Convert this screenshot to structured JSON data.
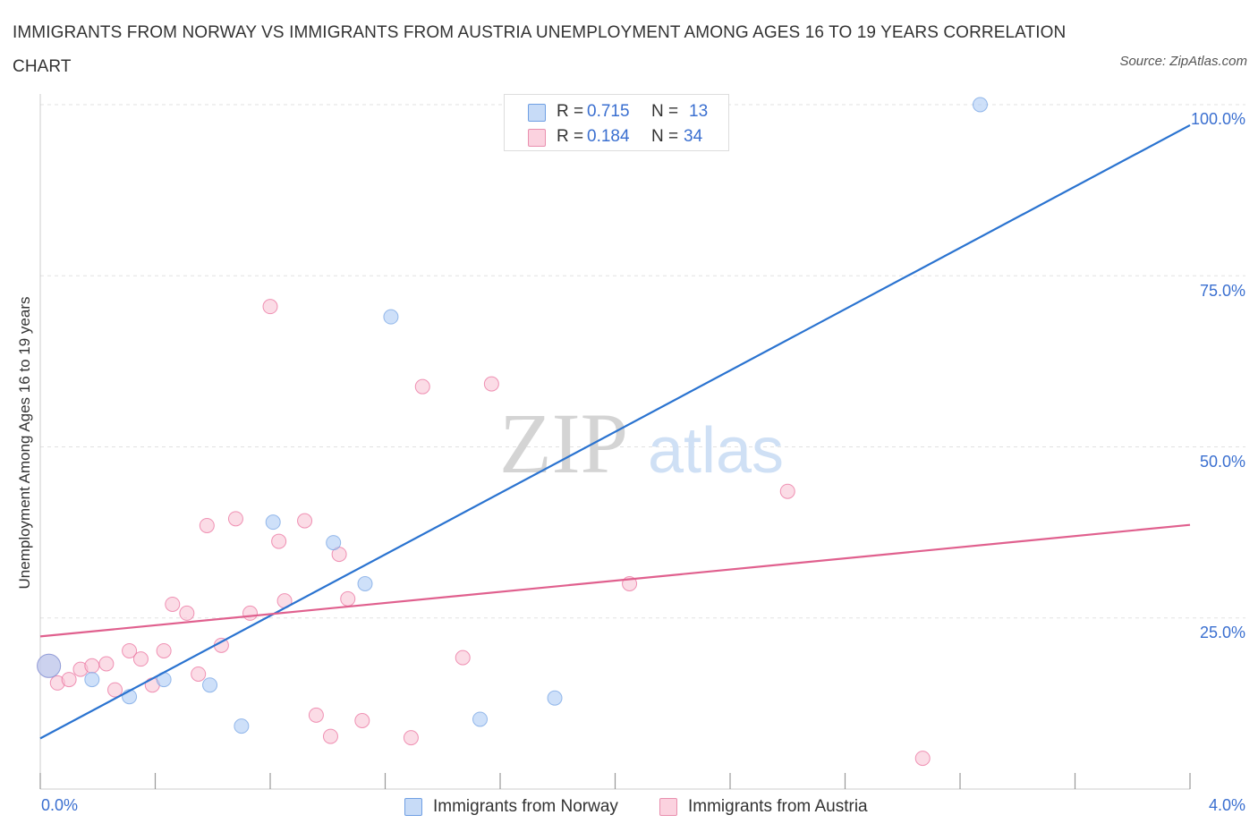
{
  "header": {
    "title": "IMMIGRANTS FROM NORWAY VS IMMIGRANTS FROM AUSTRIA UNEMPLOYMENT AMONG AGES 16 TO 19 YEARS CORRELATION CHART",
    "source": "Source: ZipAtlas.com"
  },
  "watermark": {
    "zip": "ZIP",
    "atlas": "atlas"
  },
  "legend": {
    "norway": {
      "r_label": "R =",
      "r_value": "0.715",
      "n_label": "N =",
      "n_value": "13",
      "color": "#aecbf5",
      "border": "#6f9fe3"
    },
    "austria": {
      "r_label": "R =",
      "r_value": "0.184",
      "n_label": "N =",
      "n_value": "34",
      "color": "#f8c4d5",
      "border": "#e98fae"
    }
  },
  "bottom_legend": {
    "norway": "Immigrants from Norway",
    "austria": "Immigrants from Austria"
  },
  "axes": {
    "ylabel": "Unemployment Among Ages 16 to 19 years",
    "x_min_label": "0.0%",
    "x_max_label": "4.0%",
    "y_ticks": [
      "100.0%",
      "75.0%",
      "50.0%",
      "25.0%"
    ]
  },
  "chart_data": {
    "type": "scatter",
    "title": "IMMIGRANTS FROM NORWAY VS IMMIGRANTS FROM AUSTRIA UNEMPLOYMENT AMONG AGES 16 TO 19 YEARS CORRELATION CHART",
    "xlabel": "",
    "ylabel": "Unemployment Among Ages 16 to 19 years",
    "xlim": [
      0,
      4
    ],
    "ylim": [
      0,
      100
    ],
    "grid": true,
    "series": [
      {
        "name": "Immigrants from Norway",
        "color": "#6f9fe3",
        "fill": "#aecbf5",
        "points": [
          [
            0.03,
            18.0
          ],
          [
            0.18,
            16.0
          ],
          [
            0.31,
            13.5
          ],
          [
            0.43,
            16.0
          ],
          [
            0.59,
            15.2
          ],
          [
            0.7,
            9.2
          ],
          [
            0.81,
            39.0
          ],
          [
            1.02,
            36.0
          ],
          [
            1.13,
            30.0
          ],
          [
            1.22,
            69.0
          ],
          [
            1.53,
            10.2
          ],
          [
            1.79,
            13.3
          ],
          [
            3.27,
            100.0
          ]
        ],
        "trend": [
          [
            0.0,
            7.4
          ],
          [
            4.0,
            97.0
          ]
        ]
      },
      {
        "name": "Immigrants from Austria",
        "color": "#e96a98",
        "fill": "#f8c4d5",
        "points": [
          [
            0.03,
            18.0
          ],
          [
            0.06,
            15.5
          ],
          [
            0.1,
            16.0
          ],
          [
            0.14,
            17.5
          ],
          [
            0.18,
            18.0
          ],
          [
            0.23,
            18.3
          ],
          [
            0.26,
            14.5
          ],
          [
            0.31,
            20.2
          ],
          [
            0.35,
            19.0
          ],
          [
            0.39,
            15.2
          ],
          [
            0.43,
            20.2
          ],
          [
            0.46,
            27.0
          ],
          [
            0.51,
            25.7
          ],
          [
            0.55,
            16.8
          ],
          [
            0.58,
            38.5
          ],
          [
            0.63,
            21.0
          ],
          [
            0.68,
            39.5
          ],
          [
            0.73,
            25.7
          ],
          [
            0.8,
            70.5
          ],
          [
            0.83,
            36.2
          ],
          [
            0.85,
            27.5
          ],
          [
            0.92,
            39.2
          ],
          [
            0.96,
            10.8
          ],
          [
            1.01,
            7.7
          ],
          [
            1.04,
            34.3
          ],
          [
            1.07,
            27.8
          ],
          [
            1.12,
            10.0
          ],
          [
            1.29,
            7.5
          ],
          [
            1.33,
            58.8
          ],
          [
            1.47,
            19.2
          ],
          [
            1.57,
            59.2
          ],
          [
            2.05,
            30.0
          ],
          [
            2.6,
            43.5
          ],
          [
            3.07,
            4.5
          ]
        ],
        "trend": [
          [
            0.0,
            22.3
          ],
          [
            4.0,
            38.6
          ]
        ]
      }
    ]
  }
}
